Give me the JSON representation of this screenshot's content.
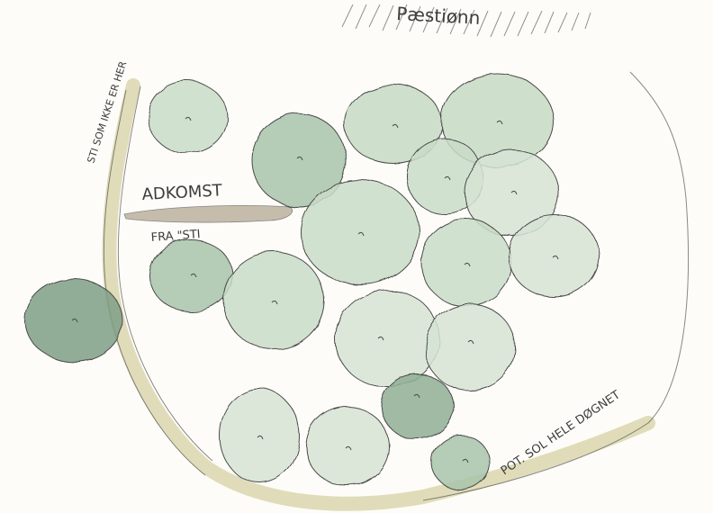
{
  "labels": {
    "top_text": "Pæstiønn",
    "left_arc": "STI SOM IKKE ER HER",
    "mid_label_1": "ADKOMST",
    "mid_label_2": "FRA \"STI",
    "right_arc": "POT. SOL HELE DØGNET"
  },
  "colors": {
    "paper": "#fdfcf8",
    "tree_light": "#c9dcc8",
    "tree_mid": "#a9c4aa",
    "tree_dark": "#7f9f86",
    "path_beige": "#d6d1a6",
    "path_brown": "#a89b83",
    "pencil": "#4a4a4a"
  }
}
